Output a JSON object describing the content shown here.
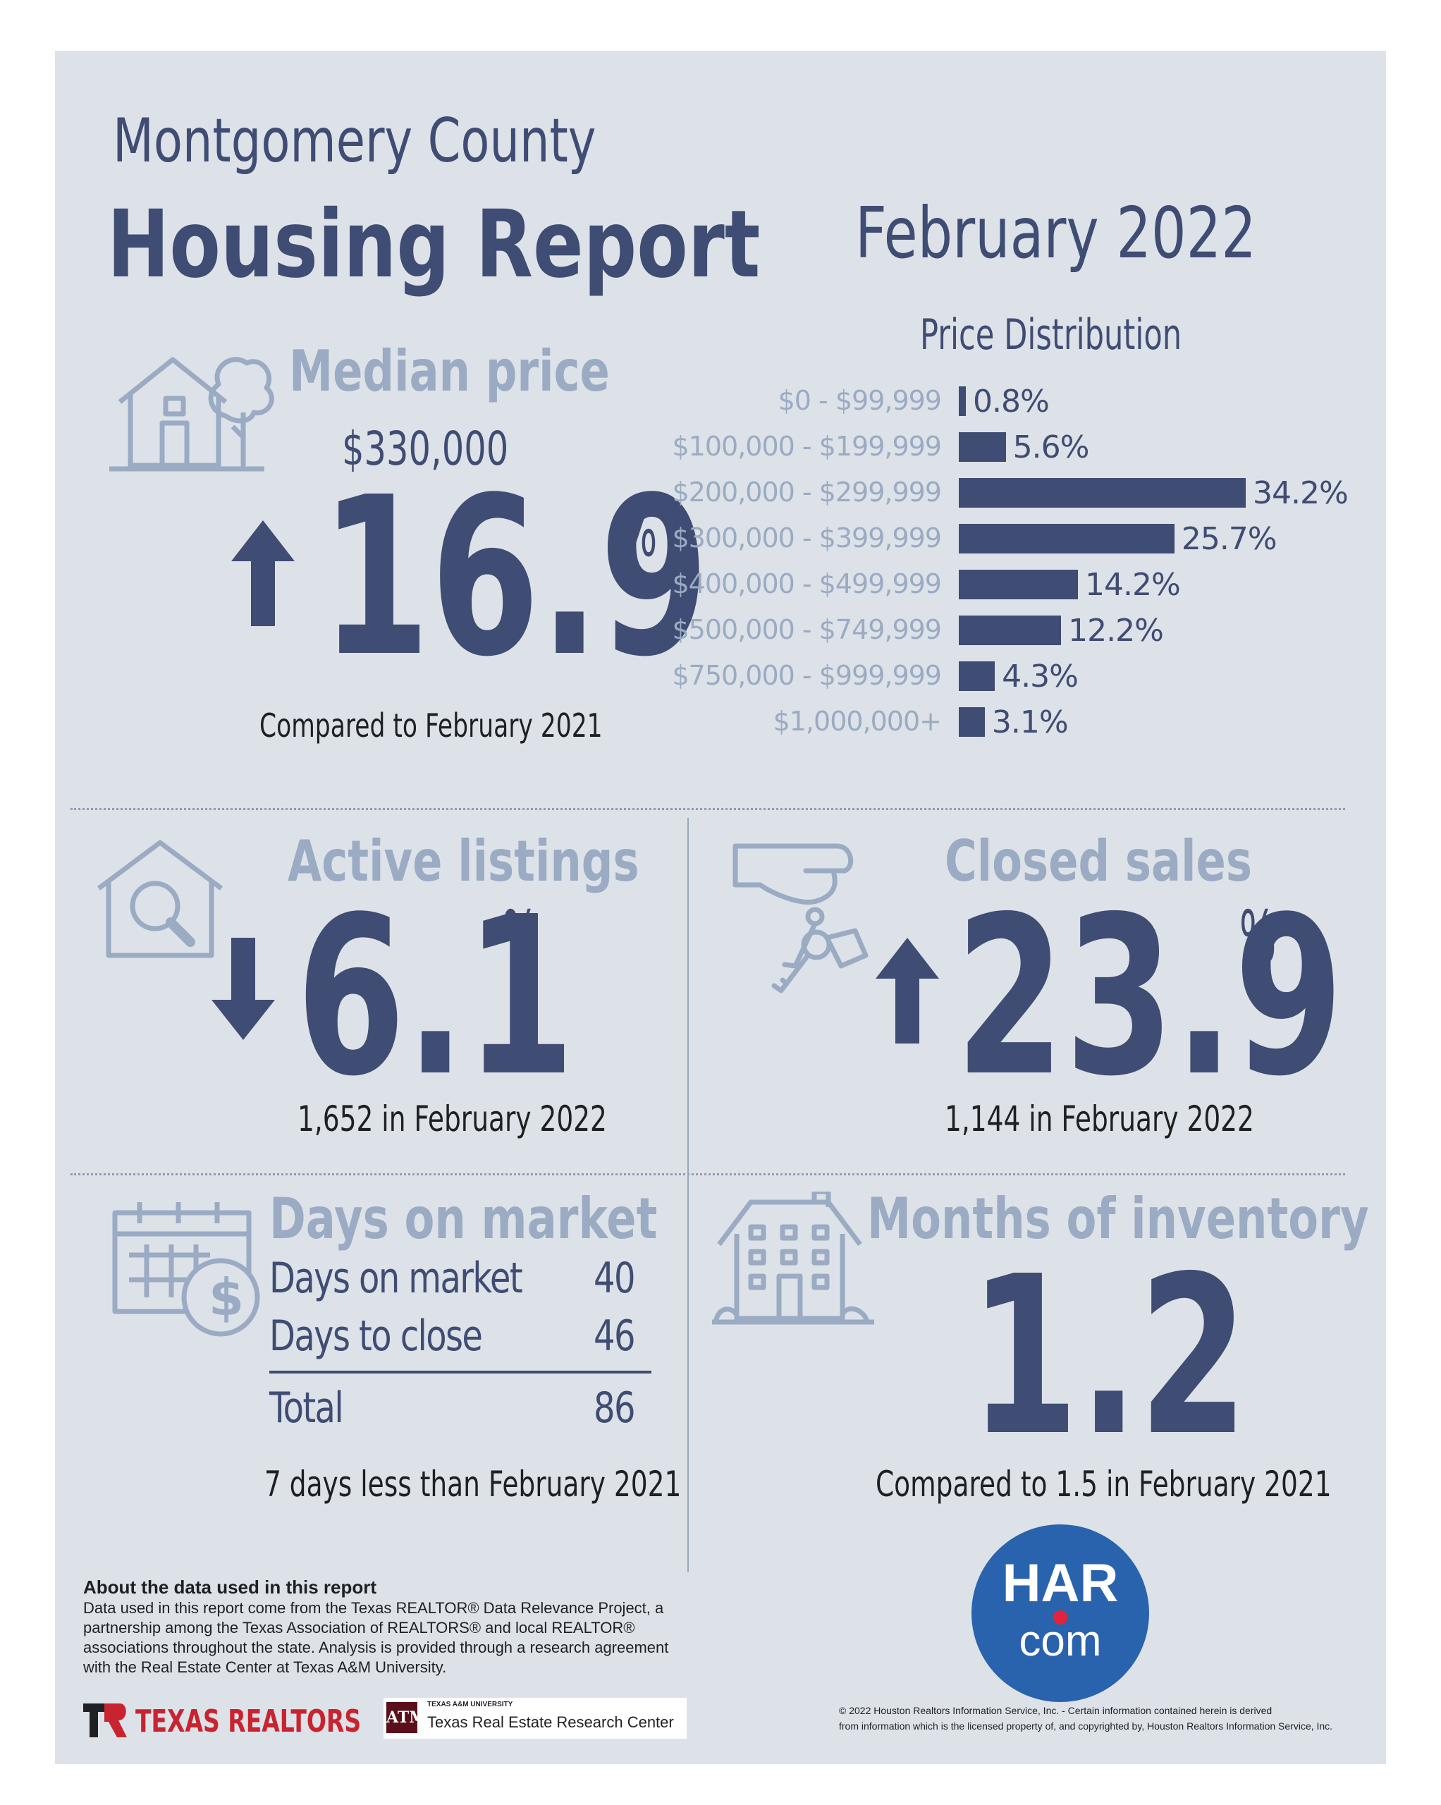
{
  "header": {
    "county": "Montgomery County",
    "report": "Housing Report",
    "period": "February 2022"
  },
  "median_price": {
    "title": "Median price",
    "value": "$330,000",
    "change": "16.9",
    "unit": "%",
    "direction": "up",
    "comparison": "Compared to February 2021",
    "icon": "house-tree-icon"
  },
  "price_distribution": {
    "title": "Price Distribution",
    "chart_data": {
      "type": "bar",
      "title": "Price Distribution",
      "categories": [
        "$0 - $99,999",
        "$100,000 - $199,999",
        "$200,000 - $299,999",
        "$300,000 - $399,999",
        "$400,000 - $499,999",
        "$500,000 - $749,999",
        "$750,000 - $999,999",
        "$1,000,000+"
      ],
      "values": [
        0.8,
        5.6,
        34.2,
        25.7,
        14.2,
        12.2,
        4.3,
        3.1
      ],
      "value_labels": [
        "0.8%",
        "5.6%",
        "34.2%",
        "25.7%",
        "14.2%",
        "12.2%",
        "4.3%",
        "3.1%"
      ],
      "orientation": "horizontal",
      "color": "#3f4c73"
    }
  },
  "active_listings": {
    "title": "Active listings",
    "change": "6.1",
    "unit": "%",
    "direction": "down",
    "detail": "1,652 in February 2022",
    "icon": "house-magnifier-icon"
  },
  "closed_sales": {
    "title": "Closed sales",
    "change": "23.9",
    "unit": "%",
    "direction": "up",
    "detail": "1,144 in February 2022",
    "icon": "hand-keys-icon"
  },
  "days_on_market": {
    "title": "Days on market",
    "rows": [
      {
        "label": "Days on market",
        "value": "40"
      },
      {
        "label": "Days to close",
        "value": "46"
      }
    ],
    "total_label": "Total",
    "total_value": "86",
    "comparison": "7 days less than February 2021",
    "icon": "calendar-dollar-icon"
  },
  "months_inventory": {
    "title": "Months of inventory",
    "value": "1.2",
    "comparison": "Compared to 1.5 in February 2021",
    "icon": "building-icon"
  },
  "about": {
    "heading": "About the data used in this report",
    "lines": [
      "Data used in this report come from the Texas REALTOR® Data Relevance Project, a",
      "partnership among the Texas Association of REALTORS® and local REALTOR®",
      "associations throughout the state. Analysis is provided through a research agreement",
      "with the Real Estate Center at Texas A&M University."
    ]
  },
  "logos": {
    "texas_realtors": "TEXAS REALTORS",
    "tamu_small": "TEXAS A&M UNIVERSITY",
    "tamu_center": "Texas Real Estate Research Center",
    "har_top": "HAR",
    "har_bottom": "com",
    "har_color": "#2a63ad",
    "texas_red": "#c8242f",
    "tamu_maroon": "#5b0f1a"
  },
  "copyright": {
    "line1": "© 2022 Houston Realtors Information Service, Inc. - Certain information contained herein is derived",
    "line2": "from information which is the licensed property of, and copyrighted by, Houston Realtors Information Service, Inc."
  },
  "colors": {
    "navy": "#3f4c73",
    "light": "#9aabc3",
    "panel": "#dde2e8"
  }
}
